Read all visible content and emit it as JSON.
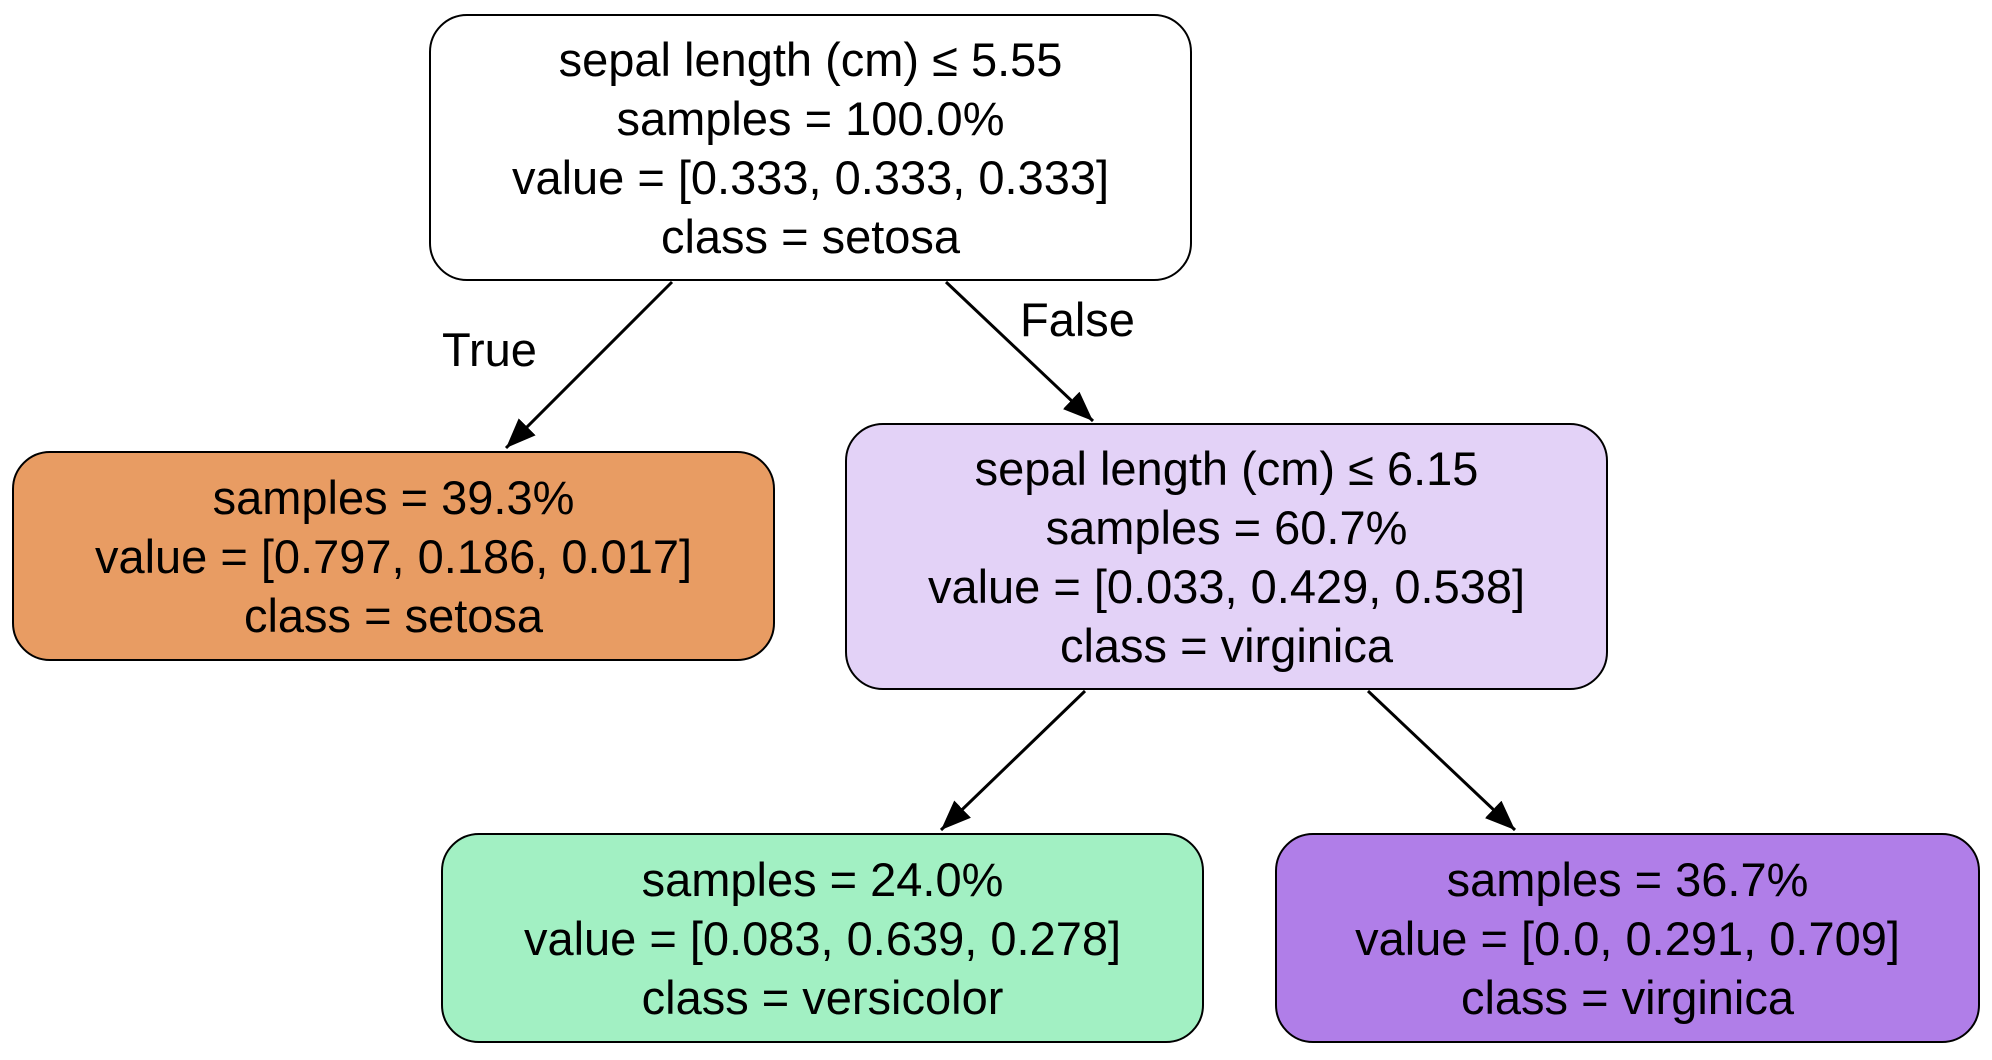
{
  "nodes": {
    "root": {
      "split": "sepal length (cm) ≤ 5.55",
      "samples": "samples = 100.0%",
      "value": "value = [0.333, 0.333, 0.333]",
      "class": "class = setosa",
      "fill": "#ffffff"
    },
    "left": {
      "samples": "samples = 39.3%",
      "value": "value = [0.797, 0.186, 0.017]",
      "class": "class = setosa",
      "fill": "#e89c63"
    },
    "right": {
      "split": "sepal length (cm) ≤ 6.15",
      "samples": "samples = 60.7%",
      "value": "value = [0.033, 0.429, 0.538]",
      "class": "class = virginica",
      "fill": "#e3d2f7"
    },
    "right_left": {
      "samples": "samples = 24.0%",
      "value": "value = [0.083, 0.639, 0.278]",
      "class": "class = versicolor",
      "fill": "#a2f0c3"
    },
    "right_right": {
      "samples": "samples = 36.7%",
      "value": "value = [0.0, 0.291, 0.709]",
      "class": "class = virginica",
      "fill": "#b07ee8"
    }
  },
  "edges": {
    "true_label": "True",
    "false_label": "False"
  }
}
